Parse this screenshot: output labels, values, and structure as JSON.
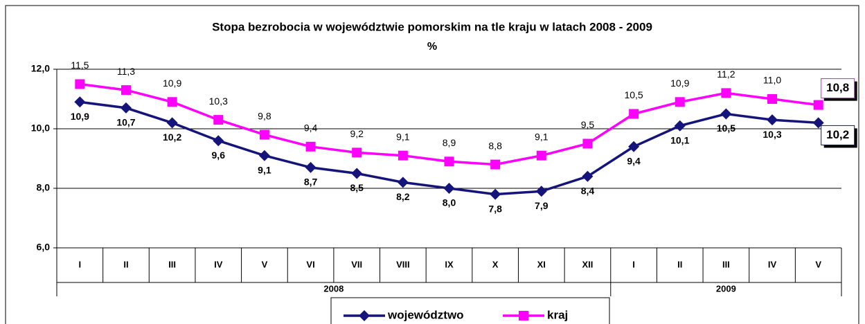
{
  "chart_data": {
    "type": "line",
    "title": "Stopa bezrobocia w województwie pomorskim na tle kraju w latach 2008 - 2009",
    "subtitle": "%",
    "categories": [
      "I",
      "II",
      "III",
      "IV",
      "V",
      "VI",
      "VII",
      "VIII",
      "IX",
      "X",
      "XI",
      "XII",
      "I",
      "II",
      "III",
      "IV",
      "V"
    ],
    "groups": [
      {
        "label": "2008",
        "count": 12
      },
      {
        "label": "2009",
        "count": 5
      }
    ],
    "series": [
      {
        "name": "województwo",
        "color": "#14147a",
        "values": [
          10.9,
          10.7,
          10.2,
          9.6,
          9.1,
          8.7,
          8.5,
          8.2,
          8.0,
          7.8,
          7.9,
          8.4,
          9.4,
          10.1,
          10.5,
          10.3,
          10.2
        ],
        "value_labels": [
          "10,9",
          "10,7",
          "10,2",
          "9,6",
          "9,1",
          "8,7",
          "8,5",
          "8,2",
          "8,0",
          "7,8",
          "7,9",
          "8,4",
          "9,4",
          "10,1",
          "10,5",
          "10,3",
          "10,2"
        ]
      },
      {
        "name": "kraj",
        "color": "#ff00ff",
        "values": [
          11.5,
          11.3,
          10.9,
          10.3,
          9.8,
          9.4,
          9.2,
          9.1,
          8.9,
          8.8,
          9.1,
          9.5,
          10.5,
          10.9,
          11.2,
          11.0,
          10.8
        ],
        "value_labels": [
          "11,5",
          "11,3",
          "10,9",
          "10,3",
          "9,8",
          "9,4",
          "9,2",
          "9,1",
          "8,9",
          "8,8",
          "9,1",
          "9,5",
          "10,5",
          "10,9",
          "11,2",
          "11,0",
          "10,8"
        ]
      }
    ],
    "ylim": [
      6,
      12
    ],
    "yticks": [
      {
        "value": 6,
        "label": "6,0"
      },
      {
        "value": 8,
        "label": "8,0"
      },
      {
        "value": 10,
        "label": "10,0"
      },
      {
        "value": 12,
        "label": "12,0"
      }
    ],
    "grid": true,
    "legend": "bottom"
  }
}
